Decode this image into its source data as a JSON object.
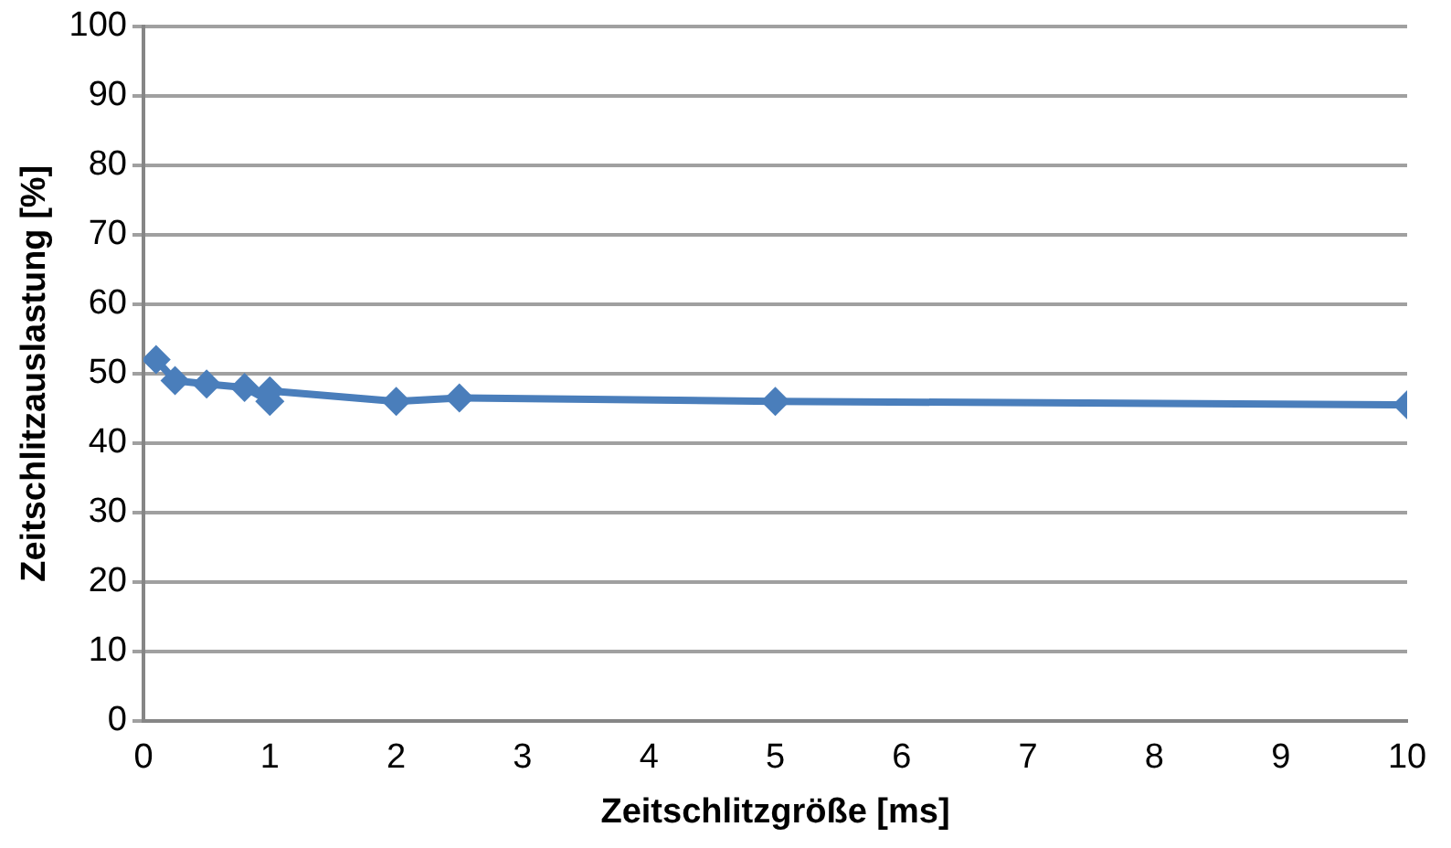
{
  "chart_data": {
    "type": "line",
    "xlabel": "Zeitschlitzgröße [ms]",
    "ylabel": "Zeitschlitzauslastung [%]",
    "x": [
      0.1,
      0.25,
      0.5,
      0.8,
      1,
      1,
      2,
      2.5,
      5,
      10
    ],
    "series": [
      {
        "color": "#4a7ebb",
        "values": [
          52,
          49,
          48.5,
          48,
          46,
          47.5,
          46,
          46.5,
          46,
          45.5
        ]
      }
    ],
    "xlim": [
      0,
      10
    ],
    "xticks": [
      0,
      1,
      2,
      3,
      4,
      5,
      6,
      7,
      8,
      9,
      10
    ],
    "ylim": [
      0,
      100
    ],
    "yticks": [
      0,
      10,
      20,
      30,
      40,
      50,
      60,
      70,
      80,
      90,
      100
    ],
    "grid": "y",
    "legend": false,
    "marker": "diamond",
    "line_style": "solid"
  }
}
